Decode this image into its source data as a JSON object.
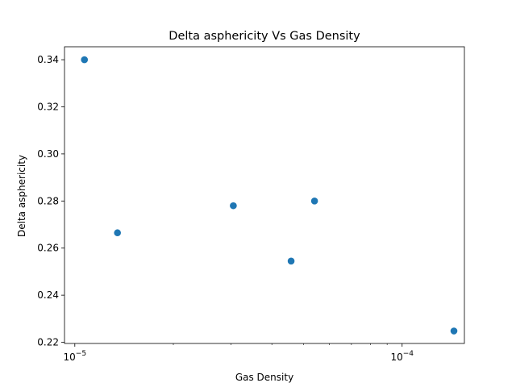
{
  "chart_data": {
    "type": "scatter",
    "title": "Delta asphericity Vs Gas Density",
    "xlabel": "Gas Density",
    "ylabel": "Delta asphericity",
    "xscale": "log",
    "xlim": [
      9.3e-06,
      0.000155
    ],
    "ylim": [
      0.2195,
      0.3455
    ],
    "x_major_ticks": [
      1e-05,
      0.0001
    ],
    "x_major_tick_labels": [
      {
        "base": "10",
        "exp": "−5"
      },
      {
        "base": "10",
        "exp": "−4"
      }
    ],
    "y_ticks": [
      0.22,
      0.24,
      0.26,
      0.28,
      0.3,
      0.32,
      0.34
    ],
    "y_tick_labels": [
      "0.22",
      "0.24",
      "0.26",
      "0.28",
      "0.30",
      "0.32",
      "0.34"
    ],
    "grid": false,
    "marker_color": "#1f77b4",
    "points": [
      {
        "x": 1.07e-05,
        "y": 0.34
      },
      {
        "x": 1.35e-05,
        "y": 0.2665
      },
      {
        "x": 3.05e-05,
        "y": 0.278
      },
      {
        "x": 4.58e-05,
        "y": 0.2545
      },
      {
        "x": 5.4e-05,
        "y": 0.28
      },
      {
        "x": 0.000144,
        "y": 0.2248
      }
    ]
  }
}
